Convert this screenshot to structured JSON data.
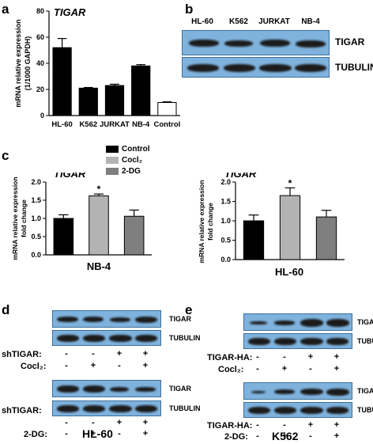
{
  "panels": {
    "a": "a",
    "b": "b",
    "c": "c",
    "d": "d",
    "e": "e"
  },
  "colors": {
    "blot_bg": "#7fb3de",
    "bar_black": "#000000",
    "bar_light": "#b3b3b3",
    "bar_gray": "#7f7f7f"
  },
  "panel_a": {
    "gene": "TIGAR",
    "ylabel_line1": "mRNA relative expression",
    "ylabel_line2": "(1/1000 GAPDH)"
  },
  "panel_b": {
    "lanes": [
      "HL-60",
      "K562",
      "JURKAT",
      "NB-4"
    ],
    "rows": [
      "TIGAR",
      "TUBULIN"
    ]
  },
  "panel_c": {
    "legend": [
      "Control",
      "Cocl₂",
      "2-DG"
    ],
    "ylabel_line1": "mRNA relative expression",
    "ylabel_line2": "fold change",
    "left_gene": "TIGAR",
    "right_gene": "TIGAR",
    "left_xlabel": "NB-4",
    "right_xlabel": "HL-60",
    "star": "*"
  },
  "panel_d": {
    "rows": [
      "TIGAR",
      "TUBULIN"
    ],
    "top_row1_label": "shTIGAR:",
    "top_row2_label": "Cocl₂:",
    "top_row1_signs": [
      "-",
      "-",
      "+",
      "+"
    ],
    "top_row2_signs": [
      "-",
      "+",
      "-",
      "+"
    ],
    "bottom_row1_label": "shTIGAR:",
    "bottom_row2_label": "2-DG:",
    "bottom_row1_signs": [
      "-",
      "-",
      "+",
      "+"
    ],
    "bottom_row2_signs": [
      "-",
      "+",
      "-",
      "+"
    ],
    "cell_line": "HL-60"
  },
  "panel_e": {
    "rows": [
      "TIGAR",
      "TUBULIN"
    ],
    "top_row1_label": "TIGAR-HA:",
    "top_row2_label": "Cocl₂:",
    "top_row1_signs": [
      "-",
      "-",
      "+",
      "+"
    ],
    "top_row2_signs": [
      "-",
      "+",
      "-",
      "+"
    ],
    "bottom_row1_label": "TIGAR-HA:",
    "bottom_row2_label": "2-DG:",
    "bottom_row1_signs": [
      "-",
      "-",
      "+",
      "+"
    ],
    "bottom_row2_signs": [
      "-",
      "+",
      "-",
      "+"
    ],
    "cell_line": "K562"
  },
  "chart_data": [
    {
      "type": "bar",
      "categories": [
        "HL-60",
        "K562",
        "JURKAT",
        "NB-4",
        "Control"
      ],
      "values": [
        52,
        21,
        23,
        38,
        10
      ],
      "errors": [
        7,
        0.5,
        1,
        1,
        0.5
      ],
      "title": "TIGAR",
      "ylabel": "mRNA relative expression (1/1000 GAPDH)",
      "ylim": [
        0,
        80
      ],
      "yticks": [
        0,
        20,
        40,
        60,
        80
      ],
      "bar_colors": [
        "#000000",
        "#000000",
        "#000000",
        "#000000",
        "#ffffff"
      ]
    },
    {
      "type": "bar",
      "categories": [
        "Control",
        "Cocl₂",
        "2-DG"
      ],
      "values": [
        1.0,
        1.62,
        1.06
      ],
      "errors": [
        0.1,
        0.05,
        0.17
      ],
      "title": "TIGAR",
      "xlabel": "NB-4",
      "ylabel": "mRNA relative expression fold change",
      "ylim": [
        0,
        2.0
      ],
      "yticks": [
        0.0,
        0.5,
        1.0,
        1.5,
        2.0
      ],
      "ytick_labels": [
        "0.0",
        "0.5",
        "1.0",
        "1.5",
        "2.0"
      ],
      "significance": [
        "",
        "*",
        ""
      ]
    },
    {
      "type": "bar",
      "categories": [
        "Control",
        "Cocl₂",
        "2-DG"
      ],
      "values": [
        1.0,
        1.65,
        1.1
      ],
      "errors": [
        0.15,
        0.2,
        0.17
      ],
      "title": "TIGAR",
      "xlabel": "HL-60",
      "ylabel": "mRNA relative expression fold change",
      "ylim": [
        0,
        2.0
      ],
      "yticks": [
        0.0,
        0.5,
        1.0,
        1.5,
        2.0
      ],
      "ytick_labels": [
        "0.0",
        "0.5",
        "1.0",
        "1.5",
        "2.0"
      ],
      "significance": [
        "",
        "*",
        ""
      ]
    }
  ]
}
